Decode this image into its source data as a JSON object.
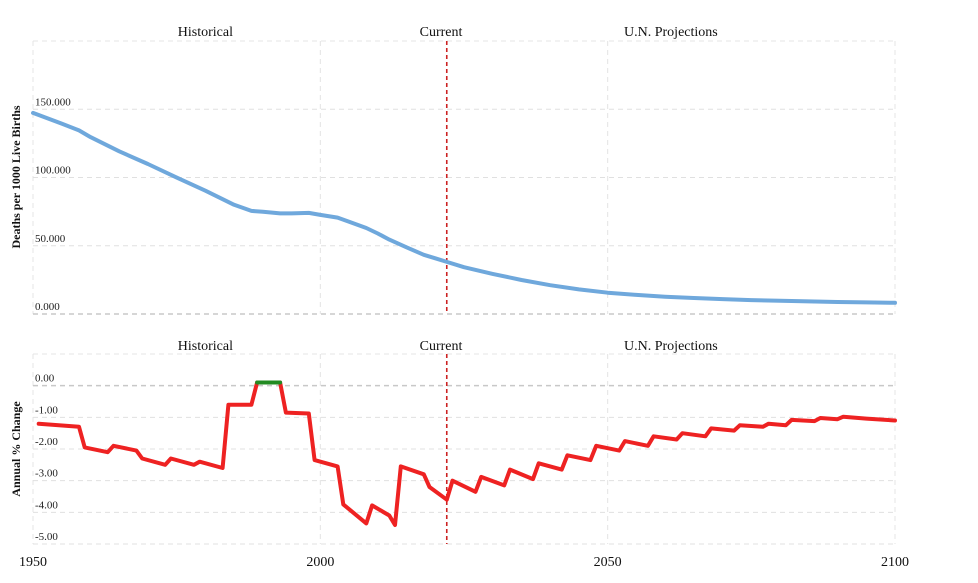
{
  "chart_data": [
    {
      "type": "line",
      "ylabel": "Deaths per 1000 Live Births",
      "xlim": [
        1950,
        2100
      ],
      "ylim": [
        0,
        200
      ],
      "yticks": [
        0,
        50,
        100,
        150
      ],
      "ytick_labels": [
        "0.000",
        "50.000",
        "100.000",
        "150.000"
      ],
      "grid": true,
      "sections": [
        {
          "label": "Historical",
          "x": 1980
        },
        {
          "label": "Current",
          "x": 2021
        },
        {
          "label": "U.N. Projections",
          "x": 2061
        }
      ],
      "current_year": 2022,
      "series": [
        {
          "color": "#6fa8dc",
          "points": [
            [
              1950,
              147.3
            ],
            [
              1955,
              139.5
            ],
            [
              1958,
              134.5
            ],
            [
              1960,
              129.6
            ],
            [
              1965,
              119.2
            ],
            [
              1970,
              109.9
            ],
            [
              1975,
              99.9
            ],
            [
              1980,
              90.3
            ],
            [
              1985,
              80.0
            ],
            [
              1988,
              75.5
            ],
            [
              1990,
              74.9
            ],
            [
              1993,
              73.7
            ],
            [
              1995,
              73.7
            ],
            [
              1998,
              74.1
            ],
            [
              2000,
              72.6
            ],
            [
              2003,
              70.6
            ],
            [
              2005,
              67.6
            ],
            [
              2008,
              63.0
            ],
            [
              2010,
              59.0
            ],
            [
              2012,
              54.5
            ],
            [
              2015,
              48.9
            ],
            [
              2018,
              43.4
            ],
            [
              2020,
              40.8
            ],
            [
              2022,
              38.2
            ],
            [
              2025,
              34.3
            ],
            [
              2030,
              29.4
            ],
            [
              2035,
              24.9
            ],
            [
              2040,
              21.1
            ],
            [
              2045,
              18.0
            ],
            [
              2050,
              15.6
            ],
            [
              2055,
              14.0
            ],
            [
              2060,
              12.7
            ],
            [
              2065,
              11.7
            ],
            [
              2070,
              10.9
            ],
            [
              2075,
              10.2
            ],
            [
              2080,
              9.7
            ],
            [
              2085,
              9.2
            ],
            [
              2090,
              8.8
            ],
            [
              2095,
              8.5
            ],
            [
              2100,
              8.2
            ]
          ]
        }
      ]
    },
    {
      "type": "line",
      "ylabel": "Annual % Change",
      "xlim": [
        1950,
        2100
      ],
      "ylim": [
        -5.0,
        1.0
      ],
      "yticks": [
        0,
        -1,
        -2,
        -3,
        -4,
        -5
      ],
      "ytick_labels": [
        "0.00",
        "-1.00",
        "-2.00",
        "-3.00",
        "-4.00",
        "-5.00"
      ],
      "grid": true,
      "sections": [
        {
          "label": "Historical",
          "x": 1980
        },
        {
          "label": "Current",
          "x": 2021
        },
        {
          "label": "U.N. Projections",
          "x": 2061
        }
      ],
      "current_year": 2022,
      "xticks": [
        "1950",
        "2000",
        "2050",
        "2100"
      ],
      "series": [
        {
          "color": "#ee2222",
          "segments": [
            [
              [
                1951,
                -1.2
              ],
              [
                1958,
                -1.3
              ],
              [
                1959,
                -1.95
              ],
              [
                1963,
                -2.1
              ],
              [
                1964,
                -1.9
              ],
              [
                1968,
                -2.05
              ],
              [
                1969,
                -2.3
              ],
              [
                1973,
                -2.5
              ],
              [
                1974,
                -2.3
              ],
              [
                1978,
                -2.5
              ],
              [
                1979,
                -2.4
              ],
              [
                1983,
                -2.6
              ],
              [
                1984,
                -0.6
              ],
              [
                1988,
                -0.6
              ],
              [
                1989,
                0.1
              ]
            ],
            [
              [
                1993,
                0.1
              ],
              [
                1994,
                -0.85
              ],
              [
                1998,
                -0.88
              ],
              [
                1999,
                -2.35
              ],
              [
                2003,
                -2.55
              ],
              [
                2004,
                -3.75
              ],
              [
                2008,
                -4.35
              ],
              [
                2009,
                -3.78
              ],
              [
                2012,
                -4.1
              ],
              [
                2013,
                -4.4
              ],
              [
                2014,
                -2.55
              ],
              [
                2018,
                -2.8
              ],
              [
                2019,
                -3.2
              ],
              [
                2022,
                -3.6
              ],
              [
                2023,
                -3.0
              ],
              [
                2027,
                -3.35
              ],
              [
                2028,
                -2.88
              ],
              [
                2032,
                -3.15
              ],
              [
                2033,
                -2.65
              ],
              [
                2037,
                -2.95
              ],
              [
                2038,
                -2.45
              ],
              [
                2042,
                -2.65
              ],
              [
                2043,
                -2.2
              ],
              [
                2047,
                -2.35
              ],
              [
                2048,
                -1.9
              ],
              [
                2052,
                -2.05
              ],
              [
                2053,
                -1.75
              ],
              [
                2057,
                -1.9
              ],
              [
                2058,
                -1.6
              ],
              [
                2062,
                -1.7
              ],
              [
                2063,
                -1.5
              ],
              [
                2067,
                -1.6
              ],
              [
                2068,
                -1.35
              ],
              [
                2072,
                -1.42
              ],
              [
                2073,
                -1.25
              ],
              [
                2077,
                -1.3
              ],
              [
                2078,
                -1.2
              ],
              [
                2081,
                -1.25
              ],
              [
                2082,
                -1.08
              ],
              [
                2086,
                -1.12
              ],
              [
                2087,
                -1.02
              ],
              [
                2090,
                -1.06
              ],
              [
                2091,
                -0.98
              ],
              [
                2095,
                -1.04
              ],
              [
                2100,
                -1.1
              ]
            ]
          ]
        },
        {
          "color": "#228b22",
          "segments": [
            [
              [
                1989,
                0.1
              ],
              [
                1993,
                0.1
              ]
            ]
          ]
        }
      ]
    }
  ]
}
